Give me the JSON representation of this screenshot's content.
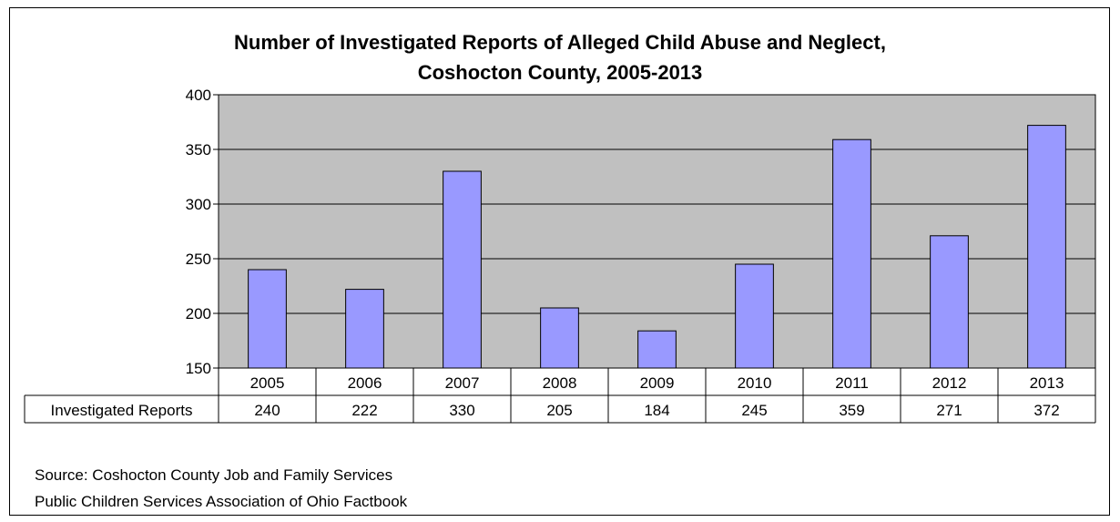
{
  "chart_data": {
    "type": "bar",
    "title_line1": "Number of Investigated Reports of Alleged Child Abuse and Neglect,",
    "title_line2": "Coshocton County, 2005-2013",
    "categories": [
      "2005",
      "2006",
      "2007",
      "2008",
      "2009",
      "2010",
      "2011",
      "2012",
      "2013"
    ],
    "series": [
      {
        "name": "Investigated Reports",
        "values": [
          240,
          222,
          330,
          205,
          184,
          245,
          359,
          271,
          372
        ]
      }
    ],
    "ylim": [
      150,
      400
    ],
    "yticks": [
      150,
      200,
      250,
      300,
      350,
      400
    ],
    "grid": true,
    "data_table": true
  },
  "source": {
    "line1": "Source: Coshocton County Job and Family Services",
    "line2": "Public Children Services Association of Ohio Factbook"
  },
  "colors": {
    "plot_bg": "#C0C0C0",
    "bar_fill": "#9999FF",
    "bar_stroke": "#000000"
  }
}
